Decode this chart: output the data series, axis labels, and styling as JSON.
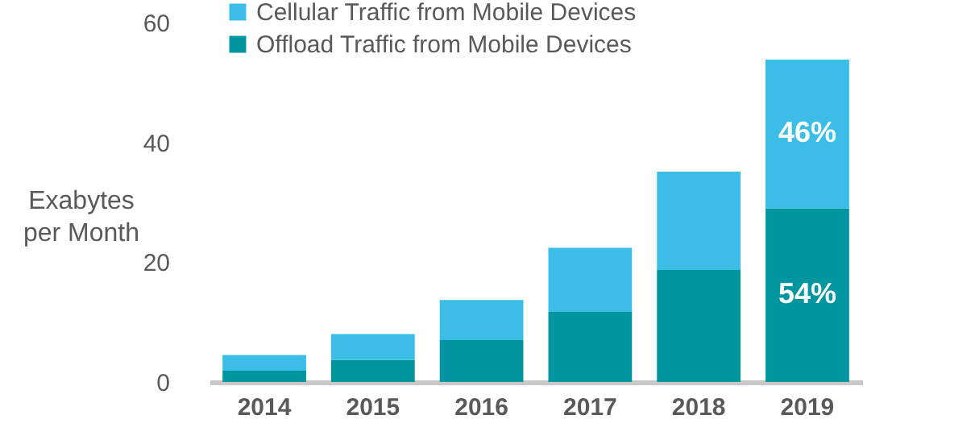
{
  "chart_data": {
    "type": "bar",
    "stacked": true,
    "ylabel": "Exabytes per Month",
    "categories": [
      "2014",
      "2015",
      "2016",
      "2017",
      "2018",
      "2019"
    ],
    "series": [
      {
        "name": "Offload Traffic from Mobile Devices",
        "color": "#00959f",
        "values": [
          1.9,
          3.7,
          7.0,
          11.7,
          18.7,
          29.0
        ]
      },
      {
        "name": "Cellular Traffic from Mobile Devices",
        "color": "#3bbde6",
        "values": [
          2.6,
          4.3,
          6.7,
          10.7,
          16.4,
          24.8
        ]
      }
    ],
    "annotations": [
      "54%",
      "46%"
    ],
    "ylim": [
      0,
      60
    ],
    "yticks": [
      0,
      20,
      40,
      60
    ],
    "grid": false,
    "legend": "top"
  }
}
